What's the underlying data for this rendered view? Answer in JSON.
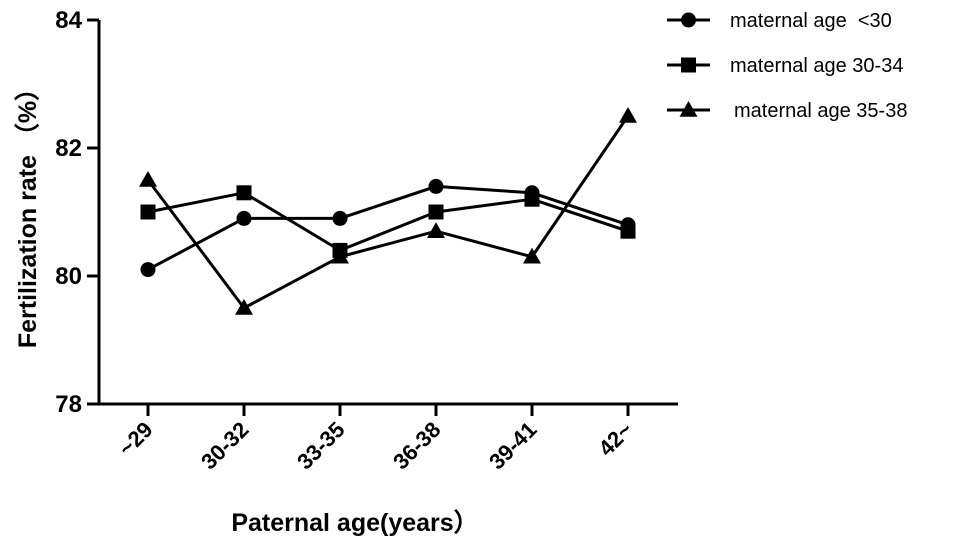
{
  "chart_data": {
    "type": "line",
    "xlabel": "Paternal age(years）",
    "ylabel": "Fertilization rate （%）",
    "categories": [
      "~29",
      "30-32",
      "33-35",
      "36-38",
      "39-41",
      "42~"
    ],
    "ylim": [
      78,
      84
    ],
    "yticks": [
      "78",
      "80",
      "82",
      "84"
    ],
    "grid": false,
    "legend_position": "top-right",
    "series": [
      {
        "name": "maternal age  <30",
        "marker": "circle",
        "values": [
          80.1,
          80.9,
          80.9,
          81.4,
          81.3,
          80.8
        ]
      },
      {
        "name": "maternal age 30-34",
        "marker": "square",
        "values": [
          81.0,
          81.3,
          80.4,
          81.0,
          81.2,
          80.7
        ]
      },
      {
        "name": "maternal age 35-38",
        "marker": "triangle",
        "values": [
          81.5,
          79.5,
          80.3,
          80.7,
          80.3,
          82.5
        ]
      }
    ],
    "color": "#000000"
  }
}
